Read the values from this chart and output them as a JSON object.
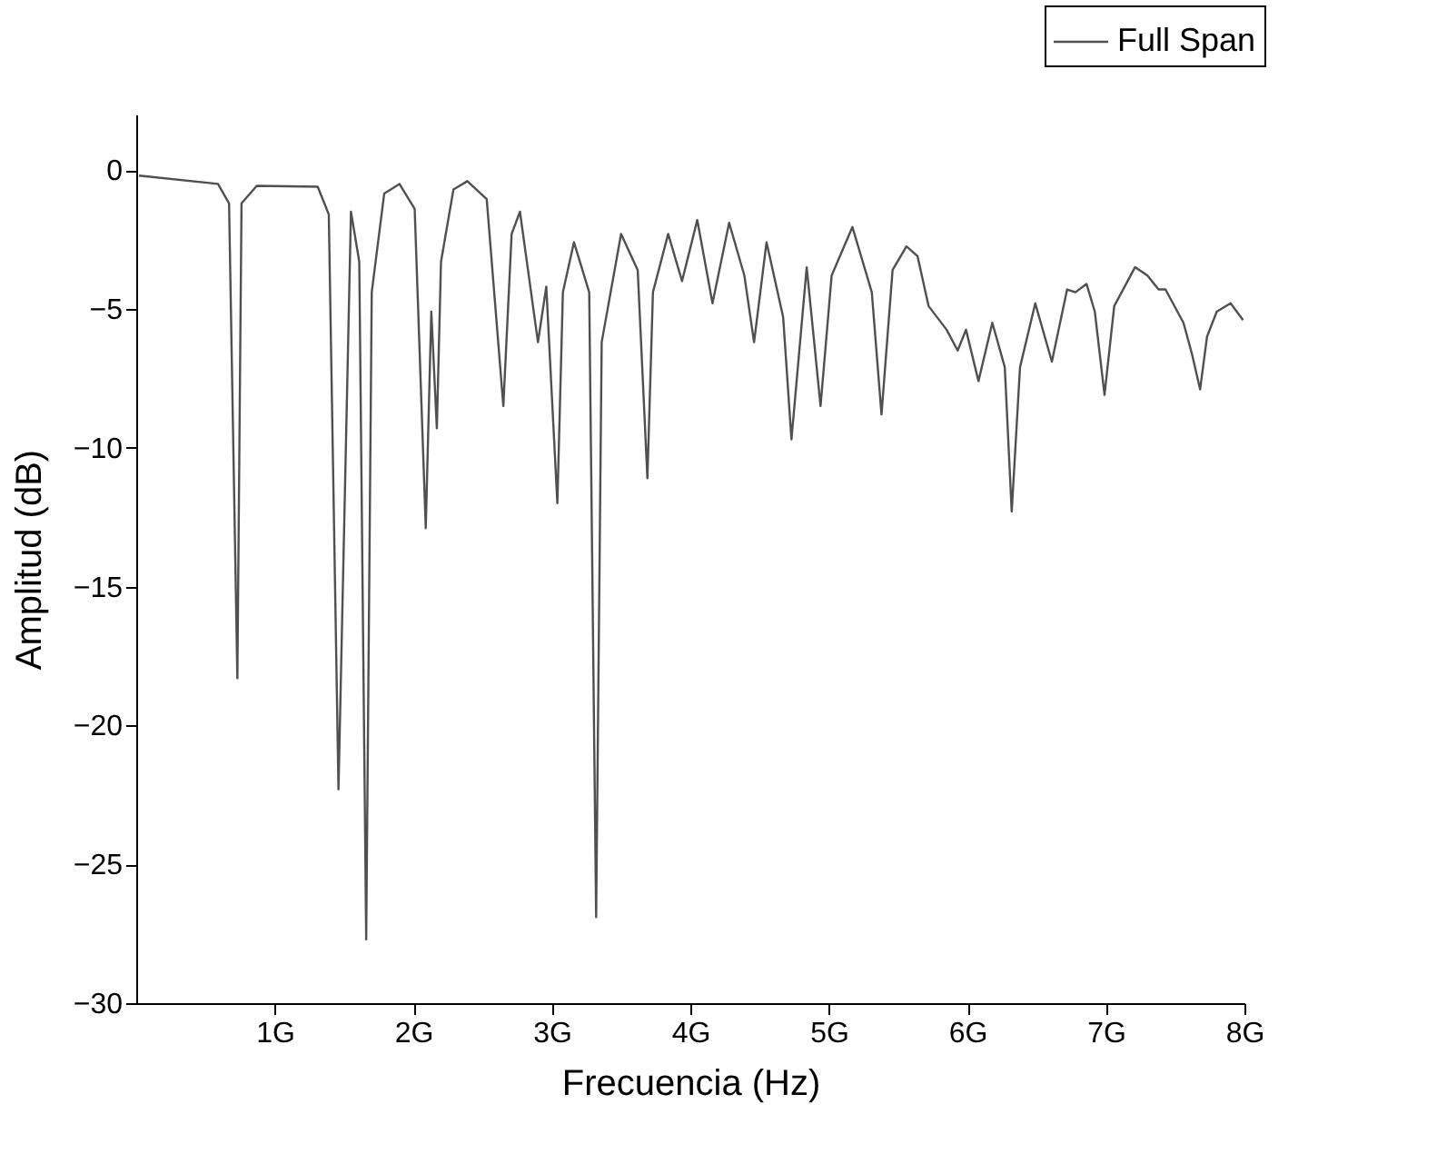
{
  "chart_data": {
    "type": "line",
    "xlabel": "Frecuencia (Hz)",
    "ylabel": "Amplitud (dB)",
    "xlim": [
      0,
      8
    ],
    "ylim": [
      -30,
      2
    ],
    "xticks": [
      {
        "value": 1,
        "label": "1G"
      },
      {
        "value": 2,
        "label": "2G"
      },
      {
        "value": 3,
        "label": "3G"
      },
      {
        "value": 4,
        "label": "4G"
      },
      {
        "value": 5,
        "label": "5G"
      },
      {
        "value": 6,
        "label": "6G"
      },
      {
        "value": 7,
        "label": "7G"
      },
      {
        "value": 8,
        "label": "8G"
      }
    ],
    "yticks": [
      0,
      -5,
      -10,
      -15,
      -20,
      -25,
      -30
    ],
    "grid": false,
    "legend": "top right",
    "line_style": "solid",
    "marker": "none",
    "series": [
      {
        "name": "Full Span",
        "color": "#505050",
        "x": [
          0.02,
          0.59,
          0.67,
          0.73,
          0.76,
          0.87,
          1.31,
          1.39,
          1.46,
          1.55,
          1.61,
          1.66,
          1.7,
          1.79,
          1.9,
          2.01,
          2.09,
          2.13,
          2.17,
          2.2,
          2.29,
          2.39,
          2.53,
          2.65,
          2.71,
          2.77,
          2.9,
          2.96,
          3.04,
          3.08,
          3.16,
          3.27,
          3.32,
          3.36,
          3.5,
          3.62,
          3.69,
          3.73,
          3.84,
          3.94,
          4.05,
          4.16,
          4.28,
          4.39,
          4.46,
          4.55,
          4.67,
          4.73,
          4.84,
          4.94,
          5.02,
          5.17,
          5.31,
          5.38,
          5.46,
          5.56,
          5.64,
          5.72,
          5.85,
          5.93,
          5.99,
          6.08,
          6.18,
          6.27,
          6.32,
          6.38,
          6.49,
          6.61,
          6.72,
          6.78,
          6.86,
          6.92,
          6.99,
          7.06,
          7.21,
          7.3,
          7.38,
          7.43,
          7.56,
          7.62,
          7.68,
          7.73,
          7.8,
          7.9,
          7.99
        ],
        "values": [
          -0.2,
          -0.5,
          -1.2,
          -18.3,
          -1.2,
          -0.57,
          -0.6,
          -1.6,
          -22.3,
          -1.5,
          -3.3,
          -27.7,
          -4.4,
          -0.85,
          -0.5,
          -1.4,
          -12.9,
          -5.1,
          -9.3,
          -3.3,
          -0.7,
          -0.4,
          -1.05,
          -8.5,
          -2.3,
          -1.5,
          -6.2,
          -4.2,
          -12.0,
          -4.4,
          -2.6,
          -4.4,
          -26.9,
          -6.2,
          -2.3,
          -3.6,
          -11.1,
          -4.4,
          -2.3,
          -4.0,
          -1.8,
          -4.8,
          -1.9,
          -3.8,
          -6.2,
          -2.6,
          -5.3,
          -9.7,
          -3.5,
          -8.5,
          -3.8,
          -2.05,
          -4.4,
          -8.8,
          -3.6,
          -2.75,
          -3.1,
          -4.9,
          -5.75,
          -6.5,
          -5.75,
          -7.6,
          -5.5,
          -7.1,
          -12.3,
          -7.1,
          -4.8,
          -6.9,
          -4.3,
          -4.4,
          -4.1,
          -5.1,
          -8.1,
          -4.9,
          -3.5,
          -3.8,
          -4.3,
          -4.3,
          -5.5,
          -6.6,
          -7.9,
          -6.0,
          -5.1,
          -4.8,
          -5.4
        ]
      }
    ]
  }
}
